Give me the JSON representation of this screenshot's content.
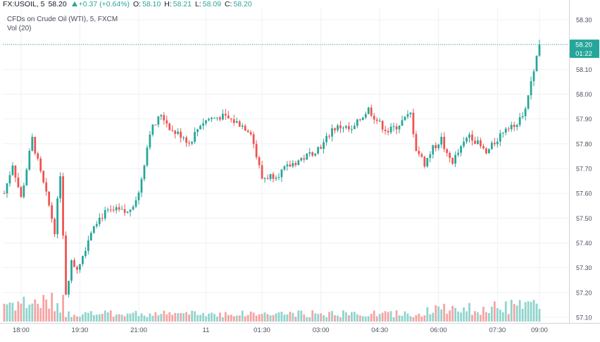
{
  "header": {
    "symbol": "FX:USOIL, 5",
    "last": "58.20",
    "change": "+0.37 (+0.64%)",
    "o_label": "O:",
    "o_value": "58.10",
    "h_label": "H:",
    "h_value": "58.21",
    "l_label": "L:",
    "l_value": "58.09",
    "c_label": "C:",
    "c_value": "58.20"
  },
  "legend": {
    "series_title": "CFDs on Crude Oil (WTI), 5, FXCM",
    "volume_title": "Vol (20)"
  },
  "price_badge": {
    "price": "58.20",
    "countdown": "01:22"
  },
  "colors": {
    "up": "#26a69a",
    "down": "#ef5350",
    "up_vol": "#8fd4cd",
    "down_vol": "#f5a3a1",
    "grid": "#eef0f3",
    "axis_text": "#4a4f5c"
  },
  "chart_data": {
    "type": "candlestick",
    "title": "CFDs on Crude Oil (WTI), 5, FXCM",
    "ylim": [
      57.08,
      58.33
    ],
    "yticks": [
      58.3,
      58.2,
      58.1,
      58.0,
      57.9,
      57.8,
      57.7,
      57.6,
      57.5,
      57.4,
      57.3,
      57.2,
      57.1
    ],
    "xticks": [
      "18:00",
      "19:30",
      "21:00",
      "11",
      "01:30",
      "03:00",
      "04:30",
      "06:00",
      "07:30",
      "09:00"
    ],
    "last_price": 58.2,
    "close_path": [
      [
        0,
        57.6
      ],
      [
        3,
        57.72
      ],
      [
        6,
        57.58
      ],
      [
        10,
        57.82
      ],
      [
        13,
        57.68
      ],
      [
        16,
        57.55
      ],
      [
        18,
        57.45
      ],
      [
        20,
        57.68
      ],
      [
        22,
        57.2
      ],
      [
        24,
        57.32
      ],
      [
        26,
        57.3
      ],
      [
        28,
        57.35
      ],
      [
        32,
        57.48
      ],
      [
        36,
        57.52
      ],
      [
        40,
        57.53
      ],
      [
        44,
        57.52
      ],
      [
        48,
        57.6
      ],
      [
        52,
        57.85
      ],
      [
        54,
        57.88
      ],
      [
        56,
        57.92
      ],
      [
        60,
        57.85
      ],
      [
        64,
        57.83
      ],
      [
        66,
        57.8
      ],
      [
        70,
        57.88
      ],
      [
        73,
        57.9
      ],
      [
        77,
        57.91
      ],
      [
        80,
        57.9
      ],
      [
        84,
        57.88
      ],
      [
        88,
        57.85
      ],
      [
        90,
        57.75
      ],
      [
        92,
        57.66
      ],
      [
        95,
        57.67
      ],
      [
        98,
        57.68
      ],
      [
        103,
        57.72
      ],
      [
        108,
        57.75
      ],
      [
        114,
        57.8
      ],
      [
        117,
        57.86
      ],
      [
        121,
        57.87
      ],
      [
        124,
        57.85
      ],
      [
        127,
        57.9
      ],
      [
        130,
        57.94
      ],
      [
        134,
        57.88
      ],
      [
        137,
        57.85
      ],
      [
        140,
        57.87
      ],
      [
        143,
        57.9
      ],
      [
        145,
        57.92
      ],
      [
        147,
        57.78
      ],
      [
        150,
        57.72
      ],
      [
        153,
        57.78
      ],
      [
        156,
        57.82
      ],
      [
        158,
        57.75
      ],
      [
        160,
        57.73
      ],
      [
        163,
        57.78
      ],
      [
        166,
        57.84
      ],
      [
        169,
        57.8
      ],
      [
        172,
        57.76
      ],
      [
        176,
        57.82
      ],
      [
        179,
        57.87
      ],
      [
        182,
        57.88
      ],
      [
        185,
        57.9
      ],
      [
        187,
        58.0
      ],
      [
        189,
        58.1
      ],
      [
        191,
        58.2
      ]
    ]
  }
}
